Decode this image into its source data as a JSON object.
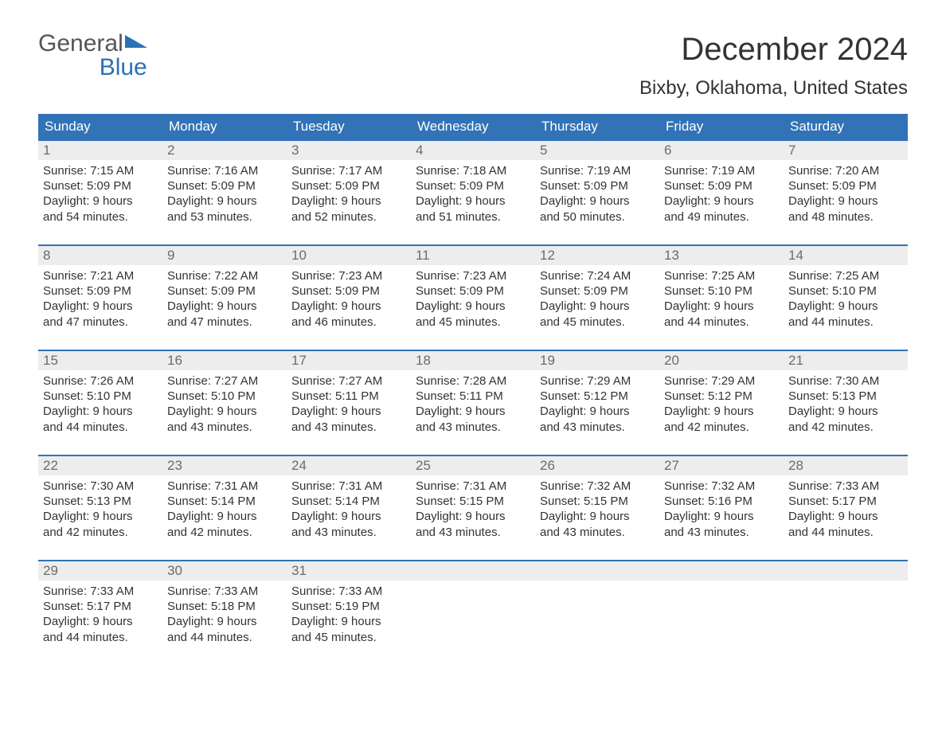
{
  "logo": {
    "line1": "General",
    "line2": "Blue"
  },
  "title": "December 2024",
  "location": "Bixby, Oklahoma, United States",
  "colors": {
    "header_bg": "#3173b6",
    "header_text": "#ffffff",
    "daynum_bg": "#ededed",
    "daynum_text": "#6b6b6b",
    "body_text": "#333333",
    "week_border": "#3173b6",
    "page_bg": "#ffffff",
    "logo_blue": "#2a72b5"
  },
  "typography": {
    "title_fontsize": 40,
    "location_fontsize": 24,
    "dayhead_fontsize": 17,
    "daynum_fontsize": 17,
    "body_fontsize": 15,
    "font_family": "Arial"
  },
  "layout": {
    "columns": 7,
    "rows": 5,
    "cell_min_height": 116
  },
  "day_headers": [
    "Sunday",
    "Monday",
    "Tuesday",
    "Wednesday",
    "Thursday",
    "Friday",
    "Saturday"
  ],
  "weeks": [
    [
      {
        "n": "1",
        "sunrise": "Sunrise: 7:15 AM",
        "sunset": "Sunset: 5:09 PM",
        "day1": "Daylight: 9 hours",
        "day2": "and 54 minutes."
      },
      {
        "n": "2",
        "sunrise": "Sunrise: 7:16 AM",
        "sunset": "Sunset: 5:09 PM",
        "day1": "Daylight: 9 hours",
        "day2": "and 53 minutes."
      },
      {
        "n": "3",
        "sunrise": "Sunrise: 7:17 AM",
        "sunset": "Sunset: 5:09 PM",
        "day1": "Daylight: 9 hours",
        "day2": "and 52 minutes."
      },
      {
        "n": "4",
        "sunrise": "Sunrise: 7:18 AM",
        "sunset": "Sunset: 5:09 PM",
        "day1": "Daylight: 9 hours",
        "day2": "and 51 minutes."
      },
      {
        "n": "5",
        "sunrise": "Sunrise: 7:19 AM",
        "sunset": "Sunset: 5:09 PM",
        "day1": "Daylight: 9 hours",
        "day2": "and 50 minutes."
      },
      {
        "n": "6",
        "sunrise": "Sunrise: 7:19 AM",
        "sunset": "Sunset: 5:09 PM",
        "day1": "Daylight: 9 hours",
        "day2": "and 49 minutes."
      },
      {
        "n": "7",
        "sunrise": "Sunrise: 7:20 AM",
        "sunset": "Sunset: 5:09 PM",
        "day1": "Daylight: 9 hours",
        "day2": "and 48 minutes."
      }
    ],
    [
      {
        "n": "8",
        "sunrise": "Sunrise: 7:21 AM",
        "sunset": "Sunset: 5:09 PM",
        "day1": "Daylight: 9 hours",
        "day2": "and 47 minutes."
      },
      {
        "n": "9",
        "sunrise": "Sunrise: 7:22 AM",
        "sunset": "Sunset: 5:09 PM",
        "day1": "Daylight: 9 hours",
        "day2": "and 47 minutes."
      },
      {
        "n": "10",
        "sunrise": "Sunrise: 7:23 AM",
        "sunset": "Sunset: 5:09 PM",
        "day1": "Daylight: 9 hours",
        "day2": "and 46 minutes."
      },
      {
        "n": "11",
        "sunrise": "Sunrise: 7:23 AM",
        "sunset": "Sunset: 5:09 PM",
        "day1": "Daylight: 9 hours",
        "day2": "and 45 minutes."
      },
      {
        "n": "12",
        "sunrise": "Sunrise: 7:24 AM",
        "sunset": "Sunset: 5:09 PM",
        "day1": "Daylight: 9 hours",
        "day2": "and 45 minutes."
      },
      {
        "n": "13",
        "sunrise": "Sunrise: 7:25 AM",
        "sunset": "Sunset: 5:10 PM",
        "day1": "Daylight: 9 hours",
        "day2": "and 44 minutes."
      },
      {
        "n": "14",
        "sunrise": "Sunrise: 7:25 AM",
        "sunset": "Sunset: 5:10 PM",
        "day1": "Daylight: 9 hours",
        "day2": "and 44 minutes."
      }
    ],
    [
      {
        "n": "15",
        "sunrise": "Sunrise: 7:26 AM",
        "sunset": "Sunset: 5:10 PM",
        "day1": "Daylight: 9 hours",
        "day2": "and 44 minutes."
      },
      {
        "n": "16",
        "sunrise": "Sunrise: 7:27 AM",
        "sunset": "Sunset: 5:10 PM",
        "day1": "Daylight: 9 hours",
        "day2": "and 43 minutes."
      },
      {
        "n": "17",
        "sunrise": "Sunrise: 7:27 AM",
        "sunset": "Sunset: 5:11 PM",
        "day1": "Daylight: 9 hours",
        "day2": "and 43 minutes."
      },
      {
        "n": "18",
        "sunrise": "Sunrise: 7:28 AM",
        "sunset": "Sunset: 5:11 PM",
        "day1": "Daylight: 9 hours",
        "day2": "and 43 minutes."
      },
      {
        "n": "19",
        "sunrise": "Sunrise: 7:29 AM",
        "sunset": "Sunset: 5:12 PM",
        "day1": "Daylight: 9 hours",
        "day2": "and 43 minutes."
      },
      {
        "n": "20",
        "sunrise": "Sunrise: 7:29 AM",
        "sunset": "Sunset: 5:12 PM",
        "day1": "Daylight: 9 hours",
        "day2": "and 42 minutes."
      },
      {
        "n": "21",
        "sunrise": "Sunrise: 7:30 AM",
        "sunset": "Sunset: 5:13 PM",
        "day1": "Daylight: 9 hours",
        "day2": "and 42 minutes."
      }
    ],
    [
      {
        "n": "22",
        "sunrise": "Sunrise: 7:30 AM",
        "sunset": "Sunset: 5:13 PM",
        "day1": "Daylight: 9 hours",
        "day2": "and 42 minutes."
      },
      {
        "n": "23",
        "sunrise": "Sunrise: 7:31 AM",
        "sunset": "Sunset: 5:14 PM",
        "day1": "Daylight: 9 hours",
        "day2": "and 42 minutes."
      },
      {
        "n": "24",
        "sunrise": "Sunrise: 7:31 AM",
        "sunset": "Sunset: 5:14 PM",
        "day1": "Daylight: 9 hours",
        "day2": "and 43 minutes."
      },
      {
        "n": "25",
        "sunrise": "Sunrise: 7:31 AM",
        "sunset": "Sunset: 5:15 PM",
        "day1": "Daylight: 9 hours",
        "day2": "and 43 minutes."
      },
      {
        "n": "26",
        "sunrise": "Sunrise: 7:32 AM",
        "sunset": "Sunset: 5:15 PM",
        "day1": "Daylight: 9 hours",
        "day2": "and 43 minutes."
      },
      {
        "n": "27",
        "sunrise": "Sunrise: 7:32 AM",
        "sunset": "Sunset: 5:16 PM",
        "day1": "Daylight: 9 hours",
        "day2": "and 43 minutes."
      },
      {
        "n": "28",
        "sunrise": "Sunrise: 7:33 AM",
        "sunset": "Sunset: 5:17 PM",
        "day1": "Daylight: 9 hours",
        "day2": "and 44 minutes."
      }
    ],
    [
      {
        "n": "29",
        "sunrise": "Sunrise: 7:33 AM",
        "sunset": "Sunset: 5:17 PM",
        "day1": "Daylight: 9 hours",
        "day2": "and 44 minutes."
      },
      {
        "n": "30",
        "sunrise": "Sunrise: 7:33 AM",
        "sunset": "Sunset: 5:18 PM",
        "day1": "Daylight: 9 hours",
        "day2": "and 44 minutes."
      },
      {
        "n": "31",
        "sunrise": "Sunrise: 7:33 AM",
        "sunset": "Sunset: 5:19 PM",
        "day1": "Daylight: 9 hours",
        "day2": "and 45 minutes."
      },
      {
        "n": "",
        "sunrise": "",
        "sunset": "",
        "day1": "",
        "day2": ""
      },
      {
        "n": "",
        "sunrise": "",
        "sunset": "",
        "day1": "",
        "day2": ""
      },
      {
        "n": "",
        "sunrise": "",
        "sunset": "",
        "day1": "",
        "day2": ""
      },
      {
        "n": "",
        "sunrise": "",
        "sunset": "",
        "day1": "",
        "day2": ""
      }
    ]
  ]
}
